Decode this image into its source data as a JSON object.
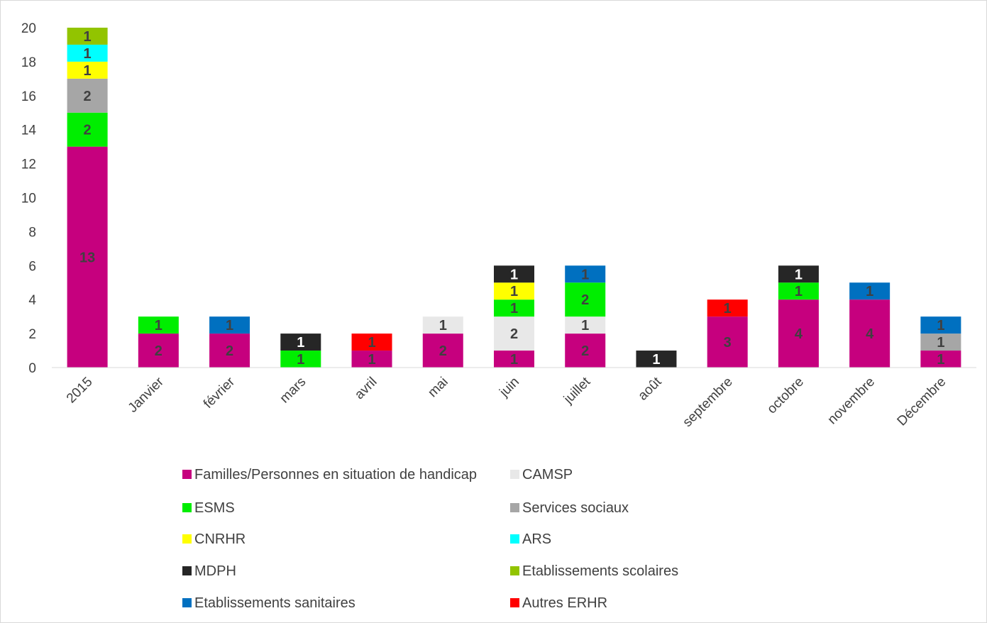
{
  "chart_data": {
    "type": "bar",
    "stacked": true,
    "title": "",
    "xlabel": "",
    "ylabel": "",
    "ylim": [
      0,
      20
    ],
    "yticks": [
      0,
      2,
      4,
      6,
      8,
      10,
      12,
      14,
      16,
      18,
      20
    ],
    "grid": false,
    "legend_position": "bottom",
    "categories": [
      "2015",
      "Janvier",
      "février",
      "mars",
      "avril",
      "mai",
      "juin",
      "juillet",
      "août",
      "septembre",
      "octobre",
      "novembre",
      "Décembre"
    ],
    "series": [
      {
        "name": "Familles/Personnes en situation de handicap",
        "color": "#c6007e",
        "label_color": "#404040",
        "values": [
          13,
          2,
          2,
          0,
          1,
          2,
          1,
          2,
          0,
          3,
          4,
          4,
          1
        ]
      },
      {
        "name": "CAMSP",
        "color": "#e8e8e8",
        "label_color": "#404040",
        "values": [
          0,
          0,
          0,
          0,
          0,
          1,
          2,
          1,
          0,
          0,
          0,
          0,
          0
        ]
      },
      {
        "name": "ESMS",
        "color": "#00ee00",
        "label_color": "#404040",
        "values": [
          2,
          1,
          0,
          1,
          0,
          0,
          1,
          2,
          0,
          0,
          1,
          0,
          0
        ]
      },
      {
        "name": "Services sociaux",
        "color": "#a6a6a6",
        "label_color": "#404040",
        "values": [
          2,
          0,
          0,
          0,
          0,
          0,
          0,
          0,
          0,
          0,
          0,
          0,
          1
        ]
      },
      {
        "name": "CNRHR",
        "color": "#ffff00",
        "label_color": "#404040",
        "values": [
          1,
          0,
          0,
          0,
          0,
          0,
          1,
          0,
          0,
          0,
          0,
          0,
          0
        ]
      },
      {
        "name": "ARS",
        "color": "#00ffff",
        "label_color": "#404040",
        "values": [
          1,
          0,
          0,
          0,
          0,
          0,
          0,
          0,
          0,
          0,
          0,
          0,
          0
        ]
      },
      {
        "name": "MDPH",
        "color": "#262626",
        "label_color": "#ffffff",
        "values": [
          0,
          0,
          0,
          1,
          0,
          0,
          1,
          0,
          1,
          0,
          1,
          0,
          0
        ]
      },
      {
        "name": "Etablissements scolaires",
        "color": "#92c400",
        "label_color": "#404040",
        "values": [
          1,
          0,
          0,
          0,
          0,
          0,
          0,
          0,
          0,
          0,
          0,
          0,
          0
        ]
      },
      {
        "name": "Etablissements sanitaires",
        "color": "#0070c0",
        "label_color": "#404040",
        "values": [
          0,
          0,
          1,
          0,
          0,
          0,
          0,
          1,
          0,
          0,
          0,
          1,
          1
        ]
      },
      {
        "name": "Autres ERHR",
        "color": "#ff0000",
        "label_color": "#404040",
        "values": [
          0,
          0,
          0,
          0,
          1,
          0,
          0,
          0,
          0,
          1,
          0,
          0,
          0
        ]
      }
    ],
    "colors": {
      "axis": "#d9d9d9",
      "text": "#404040"
    }
  }
}
